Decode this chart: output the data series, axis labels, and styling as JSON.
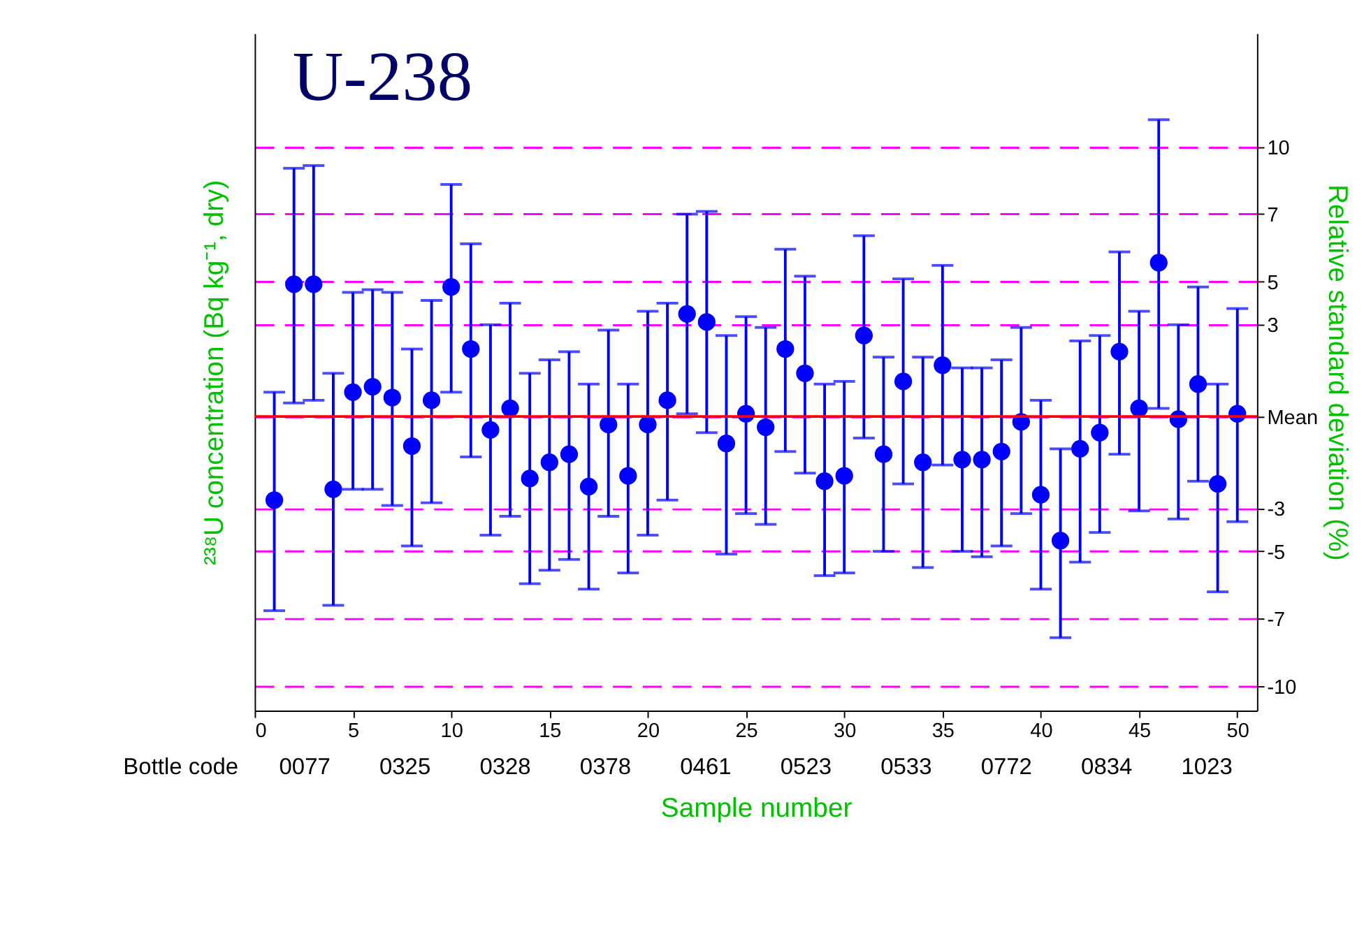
{
  "chart_data": {
    "type": "scatter",
    "title": "U-238",
    "xlabel": "Sample number",
    "ylabel": "²³⁸U concentration (Bq kg⁻¹, dry)",
    "y2label": "Relative standard deviation (%)",
    "x": [
      1,
      2,
      3,
      4,
      5,
      6,
      7,
      8,
      9,
      10,
      11,
      12,
      13,
      14,
      15,
      16,
      17,
      18,
      19,
      20,
      21,
      22,
      23,
      24,
      25,
      26,
      27,
      28,
      29,
      30,
      31,
      32,
      33,
      34,
      35,
      36,
      37,
      38,
      39,
      40,
      41,
      42,
      43,
      44,
      45,
      46,
      47,
      48,
      49,
      50
    ],
    "xlim": [
      0,
      51
    ],
    "xticks": [
      0,
      5,
      10,
      15,
      20,
      25,
      30,
      35,
      40,
      45,
      50
    ],
    "y2lim": [
      -10.9,
      14.2
    ],
    "y2ticks": [
      10,
      {
        "value": 7.5,
        "label": "7"
      },
      5,
      {
        "value": 3.4,
        "label": "3"
      },
      {
        "value": 0,
        "label": "Mean"
      },
      {
        "value": -3.4,
        "label": "-3"
      },
      -5,
      {
        "value": -7.5,
        "label": "-7"
      },
      -10
    ],
    "series": [
      {
        "color": "#0000ff",
        "axis": "y2",
        "values": [
          -3.1,
          4.9,
          4.9,
          -2.7,
          0.9,
          1.1,
          0.7,
          -1.1,
          0.6,
          4.8,
          2.5,
          -0.5,
          0.3,
          -2.3,
          -1.7,
          -1.4,
          -2.6,
          -0.3,
          -2.2,
          -0.3,
          0.6,
          3.8,
          3.5,
          -1.0,
          0.1,
          -0.4,
          2.5,
          1.6,
          -2.4,
          -2.2,
          3.0,
          -1.4,
          1.3,
          -1.7,
          1.9,
          -1.6,
          -1.6,
          -1.3,
          -0.2,
          -2.9,
          -4.6,
          -1.2,
          -0.6,
          2.4,
          0.3,
          5.7,
          -0.1,
          1.2,
          -2.5,
          0.1
        ],
        "errors": [
          [
            -7.2,
            0.9
          ],
          [
            0.5,
            9.2
          ],
          [
            0.6,
            9.3
          ],
          [
            -7.0,
            1.6
          ],
          [
            -2.7,
            4.6
          ],
          [
            -2.7,
            4.7
          ],
          [
            -3.3,
            4.6
          ],
          [
            -4.8,
            2.5
          ],
          [
            -3.2,
            4.3
          ],
          [
            0.9,
            8.6
          ],
          [
            -1.5,
            6.4
          ],
          [
            -4.4,
            3.4
          ],
          [
            -3.7,
            4.2
          ],
          [
            -6.2,
            1.6
          ],
          [
            -5.7,
            2.1
          ],
          [
            -5.3,
            2.4
          ],
          [
            -6.4,
            1.2
          ],
          [
            -3.7,
            3.2
          ],
          [
            -5.8,
            1.2
          ],
          [
            -4.4,
            3.9
          ],
          [
            -3.1,
            4.2
          ],
          [
            0.1,
            7.5
          ],
          [
            -0.6,
            7.6
          ],
          [
            -5.1,
            3.0
          ],
          [
            -3.6,
            3.7
          ],
          [
            -4.0,
            3.3
          ],
          [
            -1.3,
            6.2
          ],
          [
            -2.1,
            5.2
          ],
          [
            -5.9,
            1.2
          ],
          [
            -5.8,
            1.3
          ],
          [
            -0.8,
            6.7
          ],
          [
            -5.0,
            2.2
          ],
          [
            -2.5,
            5.1
          ],
          [
            -5.6,
            2.2
          ],
          [
            -1.8,
            5.6
          ],
          [
            -5.0,
            1.8
          ],
          [
            -5.2,
            1.8
          ],
          [
            -4.8,
            2.1
          ],
          [
            -3.6,
            3.3
          ],
          [
            -6.4,
            0.6
          ],
          [
            -8.2,
            -1.2
          ],
          [
            -5.4,
            2.8
          ],
          [
            -4.3,
            3.0
          ],
          [
            -1.4,
            6.1
          ],
          [
            -3.5,
            3.9
          ],
          [
            0.3,
            11.0
          ],
          [
            -3.8,
            3.4
          ],
          [
            -2.4,
            4.8
          ],
          [
            -6.5,
            1.2
          ],
          [
            -3.9,
            4.0
          ]
        ]
      }
    ],
    "ref_lines": [
      {
        "axis": "y2",
        "value": 0,
        "color": "#ff0000"
      }
    ],
    "annotations": [
      "Bottle code",
      "0077",
      "0325",
      "0328",
      "0378",
      "0461",
      "0523",
      "0533",
      "0772",
      "0834",
      "1023"
    ],
    "grid": "y",
    "marker": "circle"
  }
}
